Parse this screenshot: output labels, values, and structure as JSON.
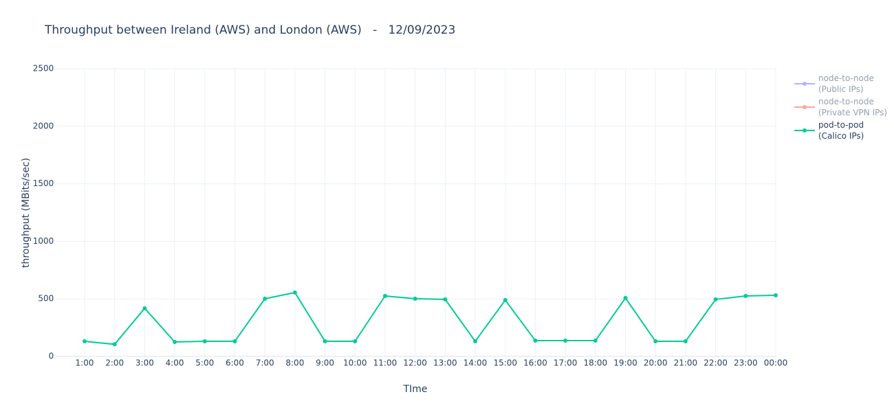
{
  "chart_data": {
    "type": "line",
    "title": "Throughput between Ireland (AWS) and London (AWS)   -   12/09/2023",
    "x_label": "TIme",
    "y_label": "throughput (MBits/sec)",
    "categories": [
      "1:00",
      "2:00",
      "3:00",
      "4:00",
      "5:00",
      "6:00",
      "7:00",
      "8:00",
      "9:00",
      "10:00",
      "11:00",
      "12:00",
      "13:00",
      "14:00",
      "15:00",
      "16:00",
      "17:00",
      "18:00",
      "19:00",
      "20:00",
      "21:00",
      "22:00",
      "23:00",
      "00:00"
    ],
    "series": [
      {
        "name": "node-to-node (Public IPs)",
        "color": "#636efa",
        "visible": false,
        "values": [
          null,
          null,
          null,
          null,
          null,
          null,
          null,
          null,
          null,
          null,
          null,
          null,
          null,
          null,
          null,
          null,
          null,
          null,
          null,
          null,
          null,
          null,
          null,
          null
        ]
      },
      {
        "name": "node-to-node (Private VPN IPs)",
        "color": "#ef553b",
        "visible": false,
        "values": [
          null,
          null,
          null,
          null,
          null,
          null,
          null,
          null,
          null,
          null,
          null,
          null,
          null,
          null,
          null,
          null,
          null,
          null,
          null,
          null,
          null,
          null,
          null,
          null
        ]
      },
      {
        "name": "pod-to-pod (Calico IPs)",
        "color": "#00cc96",
        "visible": true,
        "values": [
          131,
          105,
          418,
          125,
          131,
          131,
          501,
          555,
          131,
          131,
          525,
          501,
          495,
          131,
          489,
          137,
          137,
          137,
          507,
          131,
          131,
          495,
          525,
          531
        ]
      }
    ],
    "ylim": [
      0,
      2500
    ],
    "yticks": [
      0,
      500,
      1000,
      1500,
      2000,
      2500
    ],
    "grid": true,
    "legend": "top-right"
  }
}
